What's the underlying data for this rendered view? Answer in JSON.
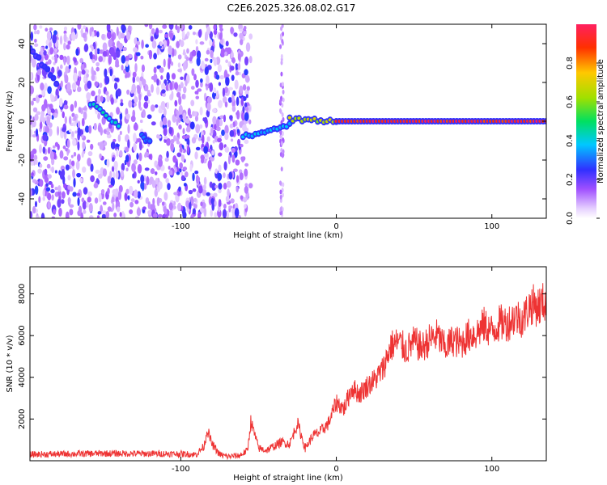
{
  "title": "C2E6.2025.326.08.02.G17",
  "chart_data": [
    {
      "type": "heatmap",
      "xlabel": "Height of straight line (km)",
      "ylabel": "Frequency (Hz)",
      "xlim": [
        -197,
        135
      ],
      "ylim": [
        -50,
        50
      ],
      "xticks": [
        -100,
        0,
        100
      ],
      "yticks": [
        -40,
        -20,
        0,
        20,
        40
      ],
      "colorbar": {
        "label": "Normalized spectral amplitude",
        "range": [
          0,
          1
        ],
        "ticks": [
          "0.0",
          "0.2",
          "0.4",
          "0.6",
          "0.8"
        ]
      },
      "noise_region_x": [
        -197,
        -55
      ],
      "trace_segments": [
        {
          "x": [
            -197,
            -180
          ],
          "y": [
            38,
            20
          ],
          "amplitude": 0.25
        },
        {
          "x": [
            -158,
            -140
          ],
          "y": [
            9,
            -2
          ],
          "amplitude": 0.45
        },
        {
          "x": [
            -125,
            -120
          ],
          "y": [
            -8,
            -11
          ],
          "amplitude": 0.35
        },
        {
          "x": [
            -60,
            -30
          ],
          "y": [
            -8,
            -2
          ],
          "amplitude": 0.4
        },
        {
          "x": [
            -30,
            0
          ],
          "y": [
            1,
            0
          ],
          "amplitude": 0.7
        },
        {
          "x": [
            0,
            135
          ],
          "y": [
            0,
            0
          ],
          "amplitude": 1.0
        }
      ]
    },
    {
      "type": "line",
      "xlabel": "Height of straight line (km)",
      "ylabel": "SNR (10 * v/v)",
      "xlim": [
        -197,
        135
      ],
      "ylim": [
        0,
        9300
      ],
      "xticks": [
        -100,
        0,
        100
      ],
      "yticks": [
        2000,
        4000,
        6000,
        8000
      ],
      "series": [
        {
          "color": "#ee3333",
          "x": [
            -197,
            -150,
            -100,
            -90,
            -85,
            -83,
            -80,
            -75,
            -70,
            -62,
            -57,
            -55,
            -50,
            -45,
            -40,
            -35,
            -30,
            -25,
            -20,
            -15,
            -10,
            -5,
            0,
            5,
            10,
            15,
            20,
            25,
            30,
            35,
            40,
            45,
            50,
            55,
            60,
            65,
            70,
            75,
            80,
            85,
            90,
            95,
            100,
            105,
            110,
            115,
            120,
            125,
            130,
            135
          ],
          "y": [
            300,
            350,
            330,
            300,
            700,
            1500,
            800,
            300,
            200,
            250,
            500,
            1900,
            600,
            500,
            700,
            900,
            800,
            1800,
            600,
            1200,
            1400,
            1800,
            2800,
            2500,
            3500,
            3200,
            3600,
            3900,
            4400,
            5500,
            5700,
            5300,
            5700,
            5400,
            5800,
            6000,
            5400,
            5800,
            5600,
            6000,
            6100,
            6500,
            6200,
            6600,
            6600,
            6900,
            6800,
            7500,
            7400,
            7700
          ]
        }
      ]
    }
  ]
}
